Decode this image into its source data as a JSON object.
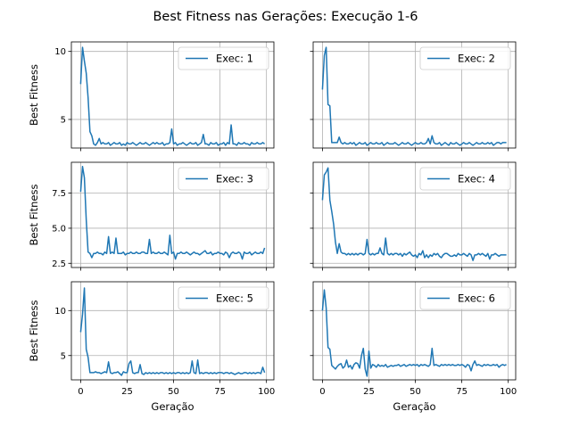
{
  "figure": {
    "suptitle": "Best Fitness nas Gerações: Execução 1-6",
    "color": "#1f77b4"
  },
  "chart_data": [
    {
      "type": "line",
      "legend": "Exec: 1",
      "legend_position": "top-right",
      "ylabel": "Best Fitness",
      "xlabel": "",
      "xlim": [
        -5,
        104
      ],
      "ylim": [
        2.9,
        10.7
      ],
      "yticks": [
        5,
        10
      ],
      "xticks": [
        0,
        25,
        50,
        75,
        100
      ],
      "show_xticklabels": false,
      "show_yticklabels": true,
      "grid": true,
      "x": [
        0,
        1,
        2,
        3,
        4,
        5,
        6,
        7,
        8,
        9,
        10,
        11,
        12,
        13,
        14,
        15,
        16,
        17,
        18,
        19,
        20,
        21,
        22,
        23,
        24,
        25,
        26,
        27,
        28,
        29,
        30,
        31,
        32,
        33,
        34,
        35,
        36,
        37,
        38,
        39,
        40,
        41,
        42,
        43,
        44,
        45,
        46,
        47,
        48,
        49,
        50,
        51,
        52,
        53,
        54,
        55,
        56,
        57,
        58,
        59,
        60,
        61,
        62,
        63,
        64,
        65,
        66,
        67,
        68,
        69,
        70,
        71,
        72,
        73,
        74,
        75,
        76,
        77,
        78,
        79,
        80,
        81,
        82,
        83,
        84,
        85,
        86,
        87,
        88,
        89,
        90,
        91,
        92,
        93,
        94,
        95,
        96,
        97,
        98,
        99
      ],
      "y": [
        7.6,
        10.3,
        9.3,
        8.4,
        6.6,
        4.1,
        3.8,
        3.2,
        3.1,
        3.3,
        3.6,
        3.2,
        3.3,
        3.2,
        3.2,
        3.3,
        3.1,
        3.2,
        3.3,
        3.2,
        3.2,
        3.3,
        3.1,
        3.2,
        3.1,
        3.3,
        3.2,
        3.2,
        3.3,
        3.2,
        3.1,
        3.2,
        3.3,
        3.2,
        3.2,
        3.3,
        3.2,
        3.1,
        3.2,
        3.3,
        3.2,
        3.3,
        3.2,
        3.2,
        3.3,
        3.1,
        3.2,
        3.2,
        3.3,
        4.3,
        3.2,
        3.3,
        3.1,
        3.2,
        3.2,
        3.3,
        3.2,
        3.1,
        3.2,
        3.3,
        3.2,
        3.2,
        3.3,
        3.1,
        3.2,
        3.3,
        3.9,
        3.2,
        3.2,
        3.1,
        3.3,
        3.2,
        3.2,
        3.3,
        3.1,
        3.2,
        3.2,
        3.3,
        3.1,
        3.3,
        3.2,
        4.6,
        3.2,
        3.2,
        3.1,
        3.3,
        3.2,
        3.2,
        3.3,
        3.2,
        3.2,
        3.1,
        3.3,
        3.2,
        3.2,
        3.3,
        3.2,
        3.2,
        3.3,
        3.2
      ]
    },
    {
      "type": "line",
      "legend": "Exec: 2",
      "legend_position": "top-right",
      "ylabel": "",
      "xlabel": "",
      "xlim": [
        -5,
        104
      ],
      "ylim": [
        2.9,
        10.7
      ],
      "yticks": [
        5,
        10
      ],
      "xticks": [
        0,
        25,
        50,
        75,
        100
      ],
      "show_xticklabels": false,
      "show_yticklabels": false,
      "grid": true,
      "x": [
        0,
        1,
        2,
        3,
        4,
        5,
        6,
        7,
        8,
        9,
        10,
        11,
        12,
        13,
        14,
        15,
        16,
        17,
        18,
        19,
        20,
        21,
        22,
        23,
        24,
        25,
        26,
        27,
        28,
        29,
        30,
        31,
        32,
        33,
        34,
        35,
        36,
        37,
        38,
        39,
        40,
        41,
        42,
        43,
        44,
        45,
        46,
        47,
        48,
        49,
        50,
        51,
        52,
        53,
        54,
        55,
        56,
        57,
        58,
        59,
        60,
        61,
        62,
        63,
        64,
        65,
        66,
        67,
        68,
        69,
        70,
        71,
        72,
        73,
        74,
        75,
        76,
        77,
        78,
        79,
        80,
        81,
        82,
        83,
        84,
        85,
        86,
        87,
        88,
        89,
        90,
        91,
        92,
        93,
        94,
        95,
        96,
        97,
        98,
        99
      ],
      "y": [
        7.2,
        9.7,
        10.3,
        6.1,
        6.0,
        3.3,
        3.3,
        3.3,
        3.3,
        3.7,
        3.3,
        3.2,
        3.3,
        3.2,
        3.2,
        3.3,
        3.2,
        3.3,
        3.1,
        3.2,
        3.3,
        3.2,
        3.2,
        3.3,
        3.1,
        3.2,
        3.3,
        3.2,
        3.2,
        3.3,
        3.2,
        3.2,
        3.3,
        3.1,
        3.2,
        3.3,
        3.2,
        3.2,
        3.2,
        3.3,
        3.2,
        3.1,
        3.2,
        3.3,
        3.2,
        3.2,
        3.3,
        3.2,
        3.1,
        3.2,
        3.3,
        3.2,
        3.2,
        3.3,
        3.2,
        3.2,
        3.3,
        3.6,
        3.2,
        3.8,
        3.3,
        3.2,
        3.2,
        3.3,
        3.1,
        3.2,
        3.3,
        3.2,
        3.1,
        3.3,
        3.2,
        3.2,
        3.3,
        3.2,
        3.1,
        3.2,
        3.3,
        3.2,
        3.2,
        3.3,
        3.2,
        3.1,
        3.2,
        3.3,
        3.2,
        3.2,
        3.3,
        3.2,
        3.2,
        3.3,
        3.2,
        3.3,
        3.1,
        3.2,
        3.3,
        3.3,
        3.2,
        3.3,
        3.3,
        3.3
      ]
    },
    {
      "type": "line",
      "legend": "Exec: 3",
      "legend_position": "top-right",
      "ylabel": "Best Fitness",
      "xlabel": "",
      "xlim": [
        -5,
        104
      ],
      "ylim": [
        2.2,
        9.7
      ],
      "yticks": [
        2.5,
        5.0,
        7.5
      ],
      "xticks": [
        0,
        25,
        50,
        75,
        100
      ],
      "show_xticklabels": false,
      "show_yticklabels": true,
      "grid": true,
      "x": [
        0,
        1,
        2,
        3,
        4,
        5,
        6,
        7,
        8,
        9,
        10,
        11,
        12,
        13,
        14,
        15,
        16,
        17,
        18,
        19,
        20,
        21,
        22,
        23,
        24,
        25,
        26,
        27,
        28,
        29,
        30,
        31,
        32,
        33,
        34,
        35,
        36,
        37,
        38,
        39,
        40,
        41,
        42,
        43,
        44,
        45,
        46,
        47,
        48,
        49,
        50,
        51,
        52,
        53,
        54,
        55,
        56,
        57,
        58,
        59,
        60,
        61,
        62,
        63,
        64,
        65,
        66,
        67,
        68,
        69,
        70,
        71,
        72,
        73,
        74,
        75,
        76,
        77,
        78,
        79,
        80,
        81,
        82,
        83,
        84,
        85,
        86,
        87,
        88,
        89,
        90,
        91,
        92,
        93,
        94,
        95,
        96,
        97,
        98,
        99
      ],
      "y": [
        7.6,
        9.4,
        8.6,
        5.6,
        3.3,
        3.2,
        2.9,
        3.2,
        3.2,
        3.3,
        3.2,
        3.2,
        3.1,
        3.3,
        3.2,
        4.4,
        3.2,
        3.3,
        3.2,
        4.3,
        3.2,
        3.2,
        3.2,
        3.3,
        3.1,
        3.2,
        3.2,
        3.3,
        3.2,
        3.2,
        3.3,
        3.2,
        3.2,
        3.3,
        3.3,
        3.2,
        3.2,
        4.2,
        3.2,
        3.3,
        3.2,
        3.2,
        3.3,
        3.2,
        3.2,
        3.3,
        3.2,
        3.1,
        4.5,
        3.2,
        3.3,
        2.8,
        3.2,
        3.2,
        3.3,
        3.2,
        3.2,
        3.3,
        3.2,
        3.1,
        3.2,
        3.3,
        3.2,
        3.2,
        3.1,
        3.2,
        3.3,
        3.4,
        3.2,
        3.2,
        3.3,
        3.1,
        3.2,
        3.2,
        3.3,
        3.2,
        3.2,
        3.1,
        3.3,
        3.2,
        2.9,
        3.2,
        3.3,
        3.2,
        3.2,
        3.3,
        3.2,
        2.8,
        3.3,
        3.2,
        3.2,
        3.3,
        3.1,
        3.2,
        3.3,
        3.2,
        3.2,
        3.3,
        3.2,
        3.6
      ]
    },
    {
      "type": "line",
      "legend": "Exec: 4",
      "legend_position": "top-right",
      "ylabel": "",
      "xlabel": "",
      "xlim": [
        -5,
        104
      ],
      "ylim": [
        2.2,
        9.7
      ],
      "yticks": [
        2.5,
        5.0,
        7.5
      ],
      "xticks": [
        0,
        25,
        50,
        75,
        100
      ],
      "show_xticklabels": false,
      "show_yticklabels": false,
      "grid": true,
      "x": [
        0,
        1,
        2,
        3,
        4,
        5,
        6,
        7,
        8,
        9,
        10,
        11,
        12,
        13,
        14,
        15,
        16,
        17,
        18,
        19,
        20,
        21,
        22,
        23,
        24,
        25,
        26,
        27,
        28,
        29,
        30,
        31,
        32,
        33,
        34,
        35,
        36,
        37,
        38,
        39,
        40,
        41,
        42,
        43,
        44,
        45,
        46,
        47,
        48,
        49,
        50,
        51,
        52,
        53,
        54,
        55,
        56,
        57,
        58,
        59,
        60,
        61,
        62,
        63,
        64,
        65,
        66,
        67,
        68,
        69,
        70,
        71,
        72,
        73,
        74,
        75,
        76,
        77,
        78,
        79,
        80,
        81,
        82,
        83,
        84,
        85,
        86,
        87,
        88,
        89,
        90,
        91,
        92,
        93,
        94,
        95,
        96,
        97,
        98,
        99
      ],
      "y": [
        7.0,
        8.8,
        9.0,
        9.3,
        7.0,
        6.2,
        5.3,
        4.0,
        3.2,
        3.9,
        3.3,
        3.2,
        3.2,
        3.1,
        3.2,
        3.1,
        3.2,
        3.1,
        3.2,
        3.1,
        3.2,
        3.2,
        3.1,
        3.2,
        4.2,
        3.2,
        3.1,
        3.2,
        3.1,
        3.2,
        3.2,
        3.6,
        3.2,
        3.1,
        4.3,
        3.2,
        3.1,
        3.2,
        3.1,
        3.2,
        3.2,
        3.1,
        3.2,
        3.0,
        3.2,
        3.1,
        3.2,
        3.3,
        3.1,
        3.0,
        3.1,
        2.9,
        3.2,
        3.1,
        3.4,
        2.9,
        3.1,
        2.9,
        3.1,
        3.0,
        3.2,
        3.1,
        3.2,
        3.0,
        2.9,
        3.1,
        3.2,
        3.2,
        3.1,
        3.0,
        3.0,
        3.1,
        3.0,
        3.2,
        3.1,
        3.1,
        3.2,
        3.1,
        3.0,
        3.2,
        3.1,
        2.7,
        3.1,
        3.1,
        3.2,
        3.1,
        3.2,
        3.1,
        3.0,
        3.2,
        2.8,
        3.1,
        3.1,
        3.2,
        3.1,
        3.0,
        3.1,
        3.1,
        3.1,
        3.1
      ]
    },
    {
      "type": "line",
      "legend": "Exec: 5",
      "legend_position": "top-right",
      "ylabel": "Best Fitness",
      "xlabel": "Geração",
      "xlim": [
        -5,
        104
      ],
      "ylim": [
        2.3,
        13.2
      ],
      "yticks": [
        5,
        10
      ],
      "xticks": [
        0,
        25,
        50,
        75,
        100
      ],
      "show_xticklabels": true,
      "show_yticklabels": true,
      "grid": true,
      "x": [
        0,
        1,
        2,
        3,
        4,
        5,
        6,
        7,
        8,
        9,
        10,
        11,
        12,
        13,
        14,
        15,
        16,
        17,
        18,
        19,
        20,
        21,
        22,
        23,
        24,
        25,
        26,
        27,
        28,
        29,
        30,
        31,
        32,
        33,
        34,
        35,
        36,
        37,
        38,
        39,
        40,
        41,
        42,
        43,
        44,
        45,
        46,
        47,
        48,
        49,
        50,
        51,
        52,
        53,
        54,
        55,
        56,
        57,
        58,
        59,
        60,
        61,
        62,
        63,
        64,
        65,
        66,
        67,
        68,
        69,
        70,
        71,
        72,
        73,
        74,
        75,
        76,
        77,
        78,
        79,
        80,
        81,
        82,
        83,
        84,
        85,
        86,
        87,
        88,
        89,
        90,
        91,
        92,
        93,
        94,
        95,
        96,
        97,
        98,
        99
      ],
      "y": [
        7.6,
        9.6,
        12.5,
        5.7,
        4.8,
        3.1,
        3.1,
        3.1,
        3.2,
        3.1,
        3.1,
        3.0,
        3.1,
        3.2,
        3.1,
        4.3,
        3.1,
        3.0,
        3.1,
        3.1,
        3.2,
        3.0,
        2.8,
        3.2,
        3.1,
        3.1,
        4.1,
        4.4,
        3.1,
        3.0,
        3.1,
        3.1,
        4.0,
        3.0,
        2.9,
        3.1,
        3.0,
        3.1,
        3.0,
        3.1,
        3.0,
        3.1,
        3.0,
        3.1,
        3.1,
        3.0,
        3.1,
        3.0,
        3.1,
        3.0,
        3.1,
        3.0,
        3.1,
        3.1,
        3.0,
        3.1,
        3.0,
        3.1,
        3.0,
        3.1,
        4.4,
        3.1,
        3.0,
        4.5,
        3.0,
        3.1,
        3.0,
        3.1,
        3.1,
        3.0,
        3.1,
        3.0,
        3.1,
        3.0,
        3.1,
        3.1,
        3.1,
        3.0,
        3.1,
        3.1,
        3.0,
        3.1,
        3.0,
        2.9,
        3.0,
        3.1,
        3.0,
        3.0,
        3.1,
        3.1,
        3.0,
        3.1,
        3.0,
        3.1,
        3.0,
        3.1,
        3.1,
        3.0,
        3.7,
        3.1
      ]
    },
    {
      "type": "line",
      "legend": "Exec: 6",
      "legend_position": "top-right",
      "ylabel": "",
      "xlabel": "Geração",
      "xlim": [
        -5,
        104
      ],
      "ylim": [
        2.3,
        13.2
      ],
      "yticks": [
        5,
        10
      ],
      "xticks": [
        0,
        25,
        50,
        75,
        100
      ],
      "show_xticklabels": true,
      "show_yticklabels": false,
      "grid": true,
      "x": [
        0,
        1,
        2,
        3,
        4,
        5,
        6,
        7,
        8,
        9,
        10,
        11,
        12,
        13,
        14,
        15,
        16,
        17,
        18,
        19,
        20,
        21,
        22,
        23,
        24,
        25,
        26,
        27,
        28,
        29,
        30,
        31,
        32,
        33,
        34,
        35,
        36,
        37,
        38,
        39,
        40,
        41,
        42,
        43,
        44,
        45,
        46,
        47,
        48,
        49,
        50,
        51,
        52,
        53,
        54,
        55,
        56,
        57,
        58,
        59,
        60,
        61,
        62,
        63,
        64,
        65,
        66,
        67,
        68,
        69,
        70,
        71,
        72,
        73,
        74,
        75,
        76,
        77,
        78,
        79,
        80,
        81,
        82,
        83,
        84,
        85,
        86,
        87,
        88,
        89,
        90,
        91,
        92,
        93,
        94,
        95,
        96,
        97,
        98,
        99
      ],
      "y": [
        10.0,
        12.3,
        10.3,
        5.9,
        5.7,
        3.9,
        3.7,
        3.5,
        3.8,
        4.0,
        4.1,
        3.6,
        3.8,
        4.5,
        3.7,
        3.9,
        3.5,
        4.0,
        4.2,
        4.1,
        3.6,
        5.0,
        5.8,
        3.5,
        2.7,
        5.5,
        3.6,
        4.0,
        3.9,
        3.7,
        4.0,
        3.8,
        3.9,
        3.8,
        4.0,
        3.7,
        3.8,
        3.9,
        3.8,
        3.9,
        3.9,
        4.0,
        3.8,
        3.9,
        4.0,
        3.8,
        3.9,
        4.0,
        3.9,
        4.0,
        3.9,
        4.0,
        3.8,
        4.0,
        3.9,
        4.0,
        3.9,
        3.8,
        4.0,
        5.8,
        3.9,
        4.0,
        3.9,
        3.8,
        4.0,
        3.9,
        4.0,
        3.9,
        4.0,
        3.9,
        4.0,
        3.9,
        3.9,
        4.0,
        3.9,
        4.0,
        3.9,
        3.7,
        4.0,
        3.9,
        3.3,
        4.0,
        4.4,
        3.9,
        4.0,
        3.9,
        3.8,
        4.0,
        3.9,
        4.0,
        3.9,
        3.9,
        4.0,
        3.9,
        4.0,
        3.7,
        3.9,
        4.0,
        3.9,
        4.0
      ]
    }
  ]
}
